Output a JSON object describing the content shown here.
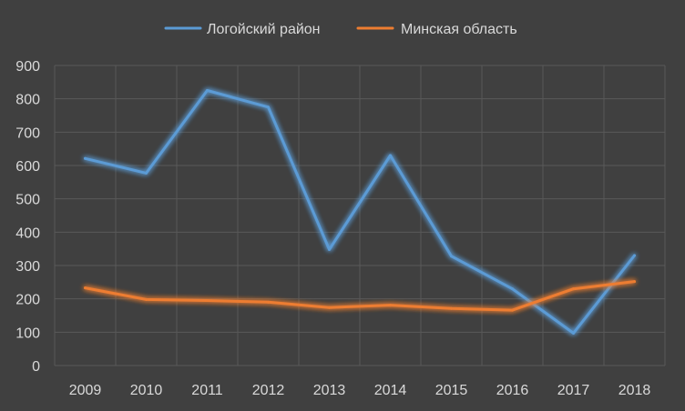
{
  "chart_data": {
    "type": "line",
    "categories": [
      "2009",
      "2010",
      "2011",
      "2012",
      "2013",
      "2014",
      "2015",
      "2016",
      "2017",
      "2018"
    ],
    "series": [
      {
        "name": "Логойский район",
        "color": "#5b9bd5",
        "values": [
          621,
          577,
          825,
          775,
          348,
          630,
          328,
          230,
          97,
          330
        ]
      },
      {
        "name": "Минская область",
        "color": "#ed7d31",
        "values": [
          233,
          198,
          195,
          190,
          174,
          181,
          171,
          166,
          230,
          252
        ]
      }
    ],
    "yticks": [
      "0",
      "100",
      "200",
      "300",
      "400",
      "500",
      "600",
      "700",
      "800",
      "900"
    ],
    "ylim": [
      0,
      900
    ],
    "grid": true,
    "legend_position": "top",
    "title": "",
    "xlabel": "",
    "ylabel": "",
    "background": "#404040",
    "grid_color": "#595959",
    "text_color": "#d9d9d9"
  }
}
